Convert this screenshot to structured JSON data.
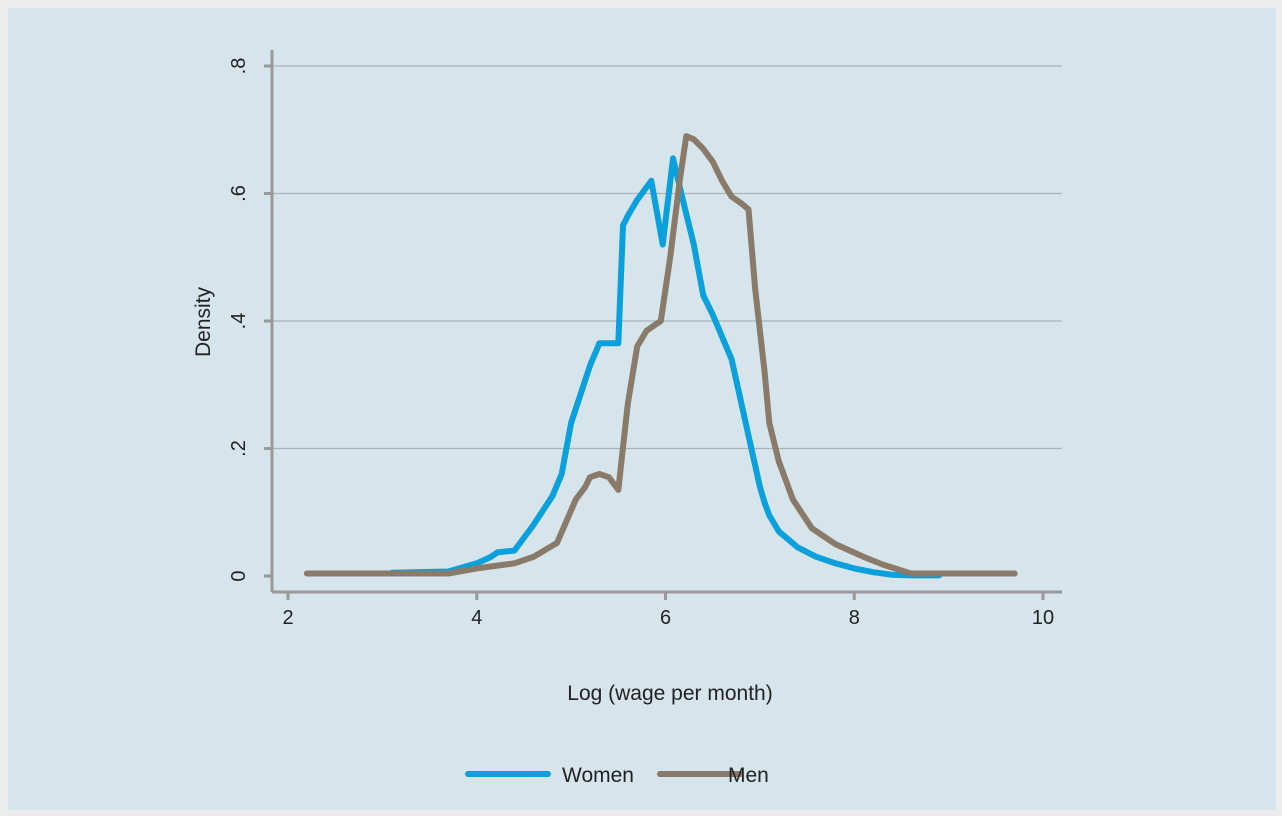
{
  "chart_data": {
    "type": "line",
    "xlabel": "Log (wage per month)",
    "ylabel": "Density",
    "xlim": [
      2,
      10
    ],
    "ylim": [
      0,
      0.8
    ],
    "xticks": [
      {
        "value": 2,
        "label": "2"
      },
      {
        "value": 4,
        "label": "4"
      },
      {
        "value": 6,
        "label": "6"
      },
      {
        "value": 8,
        "label": "8"
      },
      {
        "value": 10,
        "label": "10"
      }
    ],
    "yticks": [
      {
        "value": 0,
        "label": "0"
      },
      {
        "value": 0.2,
        "label": ".2"
      },
      {
        "value": 0.4,
        "label": ".4"
      },
      {
        "value": 0.6,
        "label": ".6"
      },
      {
        "value": 0.8,
        "label": ".8"
      }
    ],
    "grid": true,
    "legend_position": "bottom",
    "series": [
      {
        "name": "Women",
        "color": "#0aa0dc",
        "x": [
          3.1,
          3.7,
          4.0,
          4.15,
          4.22,
          4.4,
          4.6,
          4.8,
          4.9,
          5.0,
          5.2,
          5.3,
          5.4,
          5.5,
          5.55,
          5.6,
          5.7,
          5.85,
          5.97,
          6.08,
          6.2,
          6.3,
          6.35,
          6.4,
          6.5,
          6.7,
          6.85,
          7.0,
          7.05,
          7.1,
          7.2,
          7.4,
          7.6,
          7.8,
          8.0,
          8.2,
          8.4,
          8.6,
          8.9
        ],
        "y": [
          0.005,
          0.007,
          0.02,
          0.03,
          0.037,
          0.04,
          0.08,
          0.125,
          0.16,
          0.24,
          0.33,
          0.365,
          0.365,
          0.365,
          0.55,
          0.565,
          0.59,
          0.62,
          0.52,
          0.655,
          0.58,
          0.52,
          0.48,
          0.44,
          0.41,
          0.34,
          0.24,
          0.14,
          0.115,
          0.095,
          0.07,
          0.045,
          0.03,
          0.02,
          0.012,
          0.006,
          0.002,
          0.001,
          0.001
        ]
      },
      {
        "name": "Men",
        "color": "#8a7a6a",
        "x": [
          2.2,
          3.0,
          3.7,
          4.0,
          4.4,
          4.6,
          4.85,
          5.05,
          5.15,
          5.2,
          5.3,
          5.4,
          5.5,
          5.6,
          5.7,
          5.8,
          5.95,
          6.05,
          6.15,
          6.22,
          6.3,
          6.4,
          6.5,
          6.6,
          6.7,
          6.8,
          6.88,
          6.95,
          7.05,
          7.1,
          7.2,
          7.35,
          7.55,
          7.8,
          8.1,
          8.3,
          8.6,
          9.0,
          9.4,
          9.7
        ],
        "y": [
          0.004,
          0.004,
          0.004,
          0.012,
          0.02,
          0.03,
          0.052,
          0.12,
          0.14,
          0.155,
          0.16,
          0.155,
          0.135,
          0.27,
          0.36,
          0.385,
          0.4,
          0.5,
          0.62,
          0.69,
          0.685,
          0.67,
          0.65,
          0.62,
          0.595,
          0.585,
          0.575,
          0.45,
          0.32,
          0.24,
          0.18,
          0.12,
          0.075,
          0.05,
          0.03,
          0.018,
          0.004,
          0.004,
          0.004,
          0.004
        ]
      }
    ]
  }
}
